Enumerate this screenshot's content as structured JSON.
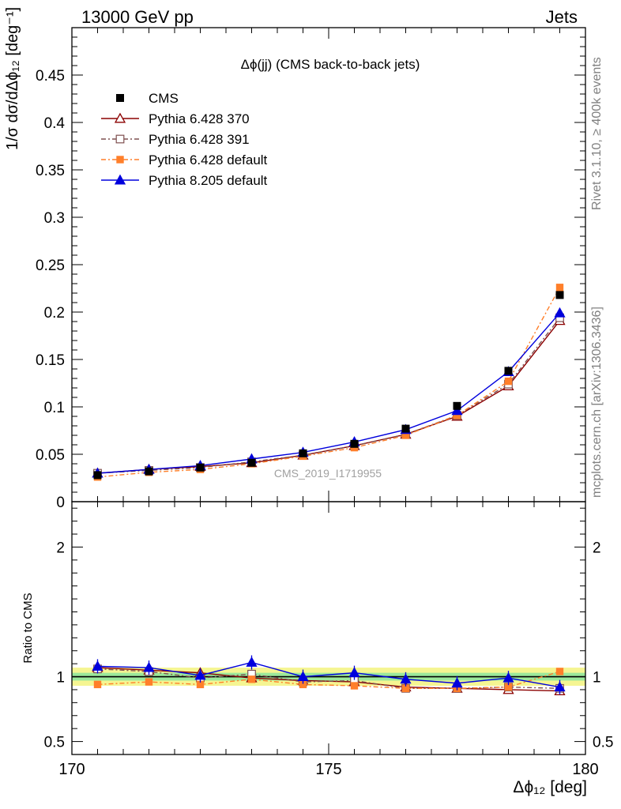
{
  "header": {
    "left": "13000 GeV pp",
    "right": "Jets"
  },
  "side_labels": {
    "rivet": "Rivet 3.1.10, ≥ 400k events",
    "mcplots": "mcplots.cern.ch [arXiv:1306.3436]"
  },
  "chart_data": {
    "type": "line",
    "title": "Δϕ(jj) (CMS back-to-back jets)",
    "watermark": "CMS_2019_I1719955",
    "xlabel": "Δϕ₁₂ [deg]",
    "ylabel": "1/σ dσ/dΔϕ₁₂ [deg⁻¹]",
    "ratio_ylabel": "Ratio to CMS",
    "xlim": [
      170,
      180
    ],
    "ylim": [
      0,
      0.5
    ],
    "ratio_ylim": [
      0.4,
      2.35
    ],
    "x_ticks": [
      {
        "value": 170,
        "label": "170"
      },
      {
        "value": 175,
        "label": "175"
      },
      {
        "value": 180,
        "label": "180"
      }
    ],
    "y_ticks": [
      {
        "value": 0,
        "label": "0"
      },
      {
        "value": 0.05,
        "label": "0.05"
      },
      {
        "value": 0.1,
        "label": "0.1"
      },
      {
        "value": 0.15,
        "label": "0.15"
      },
      {
        "value": 0.2,
        "label": "0.2"
      },
      {
        "value": 0.25,
        "label": "0.25"
      },
      {
        "value": 0.3,
        "label": "0.3"
      },
      {
        "value": 0.35,
        "label": "0.35"
      },
      {
        "value": 0.4,
        "label": "0.4"
      },
      {
        "value": 0.45,
        "label": "0.45"
      }
    ],
    "ratio_ticks": [
      {
        "value": 0.5,
        "label": "0.5"
      },
      {
        "value": 1,
        "label": "1"
      },
      {
        "value": 2,
        "label": "2"
      }
    ],
    "x": [
      170.5,
      171.5,
      172.5,
      173.5,
      174.5,
      175.5,
      176.5,
      177.5,
      178.5,
      179.5
    ],
    "data": {
      "name": "CMS",
      "color": "#000000",
      "values": [
        0.028,
        0.032,
        0.036,
        0.041,
        0.051,
        0.061,
        0.077,
        0.101,
        0.138,
        0.218
      ]
    },
    "series": [
      {
        "name": "Pythia 6.428 370",
        "color": "#8b0000",
        "dash": "",
        "marker": "triangle-open",
        "values": [
          0.03,
          0.034,
          0.037,
          0.041,
          0.049,
          0.059,
          0.071,
          0.09,
          0.122,
          0.191
        ],
        "ratio": [
          1.07,
          1.05,
          1.03,
          0.99,
          0.97,
          0.96,
          0.92,
          0.91,
          0.9,
          0.89
        ]
      },
      {
        "name": "Pythia 6.428 391",
        "color": "#7f5050",
        "dash": "6,3,2,3",
        "marker": "square-open",
        "values": [
          0.03,
          0.033,
          0.036,
          0.042,
          0.049,
          0.059,
          0.071,
          0.091,
          0.124,
          0.194
        ],
        "ratio": [
          1.06,
          1.04,
          0.99,
          1.02,
          0.96,
          0.97,
          0.91,
          0.91,
          0.92,
          0.91
        ]
      },
      {
        "name": "Pythia 6.428 default",
        "color": "#ff7f2a",
        "dash": "6,3,2,3",
        "marker": "square-filled",
        "values": [
          0.026,
          0.031,
          0.034,
          0.04,
          0.048,
          0.057,
          0.07,
          0.091,
          0.127,
          0.226
        ],
        "ratio": [
          0.94,
          0.96,
          0.94,
          0.98,
          0.94,
          0.93,
          0.91,
          0.91,
          0.92,
          1.04
        ]
      },
      {
        "name": "Pythia 8.205 default",
        "color": "#0000dd",
        "dash": "",
        "marker": "triangle-filled",
        "values": [
          0.03,
          0.034,
          0.038,
          0.045,
          0.052,
          0.063,
          0.076,
          0.096,
          0.137,
          0.199
        ],
        "ratio": [
          1.08,
          1.07,
          1.01,
          1.11,
          1.0,
          1.03,
          0.98,
          0.95,
          0.99,
          0.92
        ]
      }
    ],
    "data_band": {
      "inner": [
        0.03,
        0.03,
        0.03,
        0.03,
        0.03,
        0.03,
        0.03,
        0.03,
        0.03,
        0.03
      ],
      "outer": [
        0.07,
        0.07,
        0.07,
        0.07,
        0.07,
        0.07,
        0.07,
        0.07,
        0.07,
        0.07
      ]
    }
  }
}
